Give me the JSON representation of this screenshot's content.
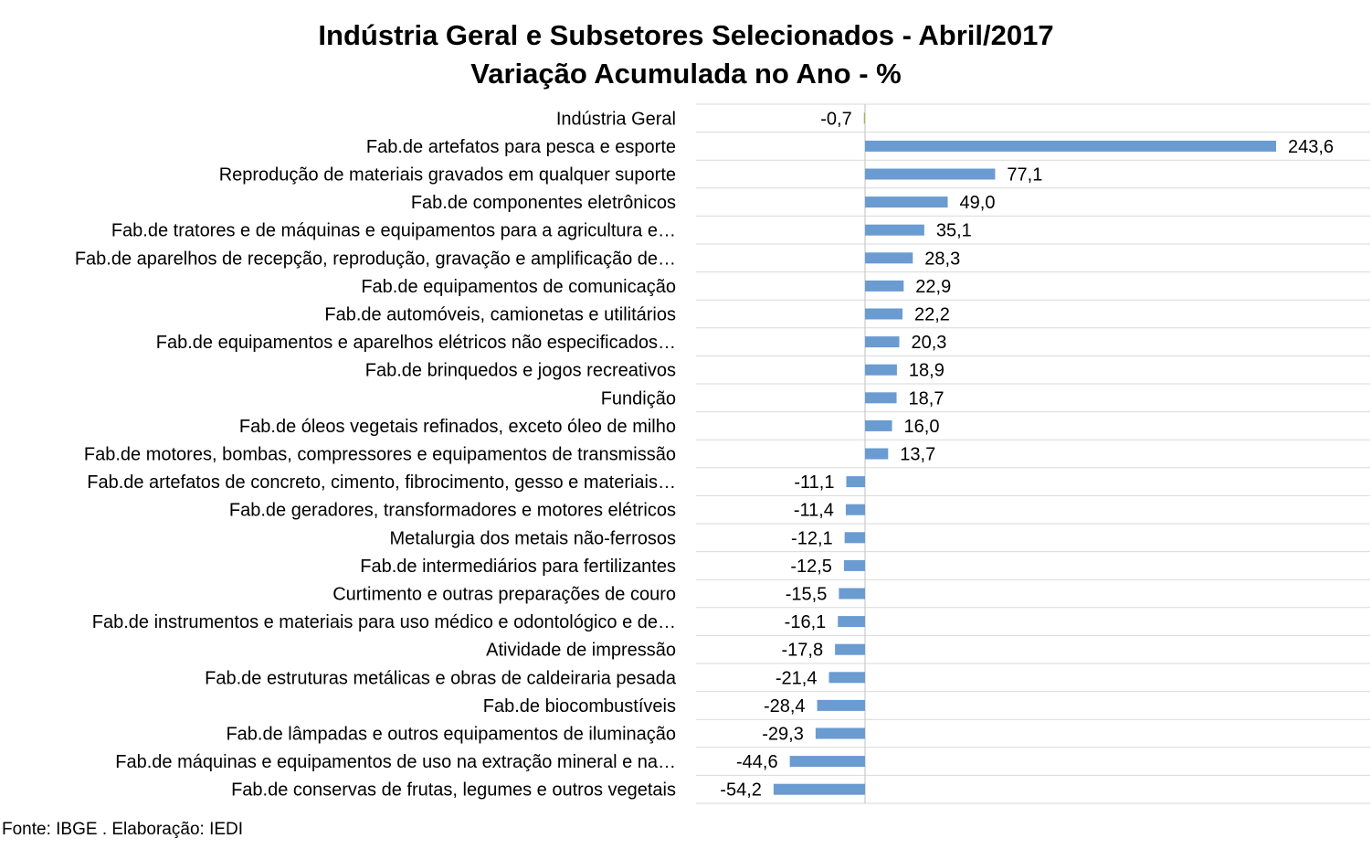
{
  "chart_data": {
    "type": "bar",
    "orientation": "horizontal",
    "title": "Indústria Geral e Subsetores Selecionados - Abril/2017",
    "subtitle": "Variação Acumulada no Ano - %",
    "categories": [
      "Indústria Geral",
      "Fab.de artefatos para pesca e esporte",
      "Reprodução de materiais gravados em qualquer suporte",
      "Fab.de componentes eletrônicos",
      "Fab.de tratores e de máquinas e equipamentos para a agricultura e…",
      "Fab.de aparelhos de recepção, reprodução, gravação e amplificação de…",
      "Fab.de equipamentos de comunicação",
      "Fab.de automóveis, camionetas e utilitários",
      "Fab.de equipamentos e aparelhos elétricos não especificados…",
      "Fab.de brinquedos e jogos recreativos",
      "Fundição",
      "Fab.de óleos vegetais refinados, exceto óleo de milho",
      "Fab.de motores, bombas, compressores e equipamentos de transmissão",
      "Fab.de artefatos de concreto, cimento, fibrocimento, gesso e materiais…",
      "Fab.de geradores, transformadores e motores elétricos",
      "Metalurgia dos metais não-ferrosos",
      "Fab.de intermediários para fertilizantes",
      "Curtimento e outras preparações de couro",
      "Fab.de instrumentos e materiais para uso médico e odontológico e de…",
      "Atividade de impressão",
      "Fab.de estruturas metálicas e obras de caldeiraria pesada",
      "Fab.de biocombustíveis",
      "Fab.de lâmpadas e outros equipamentos de iluminação",
      "Fab.de máquinas e equipamentos de uso na extração mineral e na…",
      "Fab.de conservas de frutas, legumes e outros vegetais"
    ],
    "values": [
      -0.7,
      243.6,
      77.1,
      49.0,
      35.1,
      28.3,
      22.9,
      22.2,
      20.3,
      18.9,
      18.7,
      16.0,
      13.7,
      -11.1,
      -11.4,
      -12.1,
      -12.5,
      -15.5,
      -16.1,
      -17.8,
      -21.4,
      -28.4,
      -29.3,
      -44.6,
      -54.2
    ],
    "value_labels": [
      "-0,7",
      "243,6",
      "77,1",
      "49,0",
      "35,1",
      "28,3",
      "22,9",
      "22,2",
      "20,3",
      "18,9",
      "18,7",
      "16,0",
      "13,7",
      "-11,1",
      "-11,4",
      "-12,1",
      "-12,5",
      "-15,5",
      "-16,1",
      "-17,8",
      "-21,4",
      "-28,4",
      "-29,3",
      "-44,6",
      "-54,2"
    ],
    "bar_color": "#6A9BD1",
    "highlight_bar_color": "#9BBB59",
    "grid_color": "#D9D9D9",
    "axis_color": "#BFBFBF",
    "grid": true,
    "legend": false
  },
  "source_note": "Fonte: IBGE . Elaboração: IEDI"
}
